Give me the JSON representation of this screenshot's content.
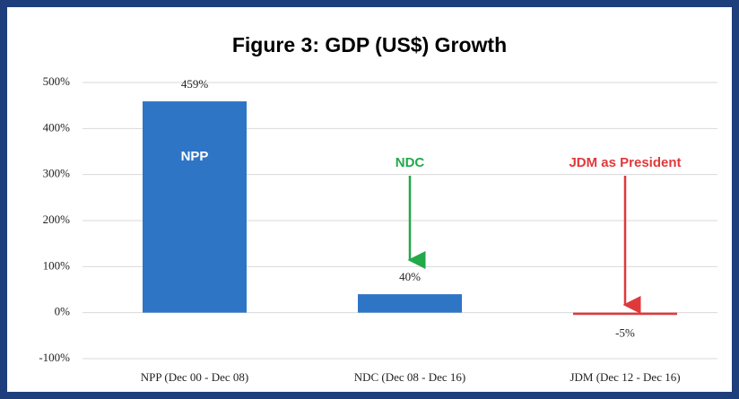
{
  "chart_data": {
    "type": "bar",
    "title": "Figure 3: GDP (US$) Growth",
    "categories": [
      "NPP (Dec 00 - Dec 08)",
      "NDC (Dec 08 - Dec 16)",
      "JDM (Dec 12 - Dec 16)"
    ],
    "values": [
      459,
      40,
      -5
    ],
    "value_labels": [
      "459%",
      "40%",
      "-5%"
    ],
    "colors": [
      "#2e75c6",
      "#2e75c6",
      "#e0393b"
    ],
    "ylim": [
      -100,
      500
    ],
    "yticks": [
      {
        "value": -100,
        "label": "-100%"
      },
      {
        "value": 0,
        "label": "0%"
      },
      {
        "value": 100,
        "label": "100%"
      },
      {
        "value": 200,
        "label": "200%"
      },
      {
        "value": 300,
        "label": "300%"
      },
      {
        "value": 400,
        "label": "400%"
      },
      {
        "value": 500,
        "label": "500%"
      }
    ],
    "grid": true,
    "annotations": [
      {
        "text": "NPP",
        "color": "#ffffff"
      },
      {
        "text": "NDC",
        "color": "#22a94a"
      },
      {
        "text": "JDM as President",
        "color": "#e0393b"
      }
    ]
  }
}
